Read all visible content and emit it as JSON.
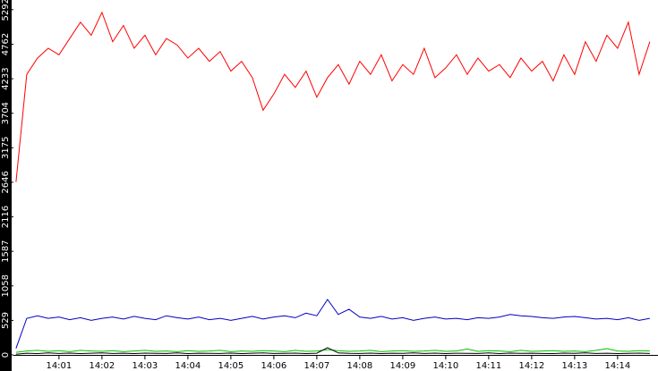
{
  "chart_data": {
    "type": "line",
    "x": [
      0,
      0.25,
      0.5,
      0.75,
      1,
      1.25,
      1.5,
      1.75,
      2,
      2.25,
      2.5,
      2.75,
      3,
      3.25,
      3.5,
      3.75,
      4,
      4.25,
      4.5,
      4.75,
      5,
      5.25,
      5.5,
      5.75,
      6,
      6.25,
      6.5,
      6.75,
      7,
      7.25,
      7.5,
      7.75,
      8,
      8.25,
      8.5,
      8.75,
      9,
      9.25,
      9.5,
      9.75,
      10,
      10.25,
      10.5,
      10.75,
      11,
      11.25,
      11.5,
      11.75,
      12,
      12.25,
      12.5,
      12.75,
      13,
      13.25,
      13.5,
      13.75,
      14,
      14.25,
      14.5,
      14.75
    ],
    "series": [
      {
        "color": "#ff0000",
        "values": [
          2650,
          4300,
          4550,
          4700,
          4600,
          4850,
          5100,
          4900,
          5250,
          4800,
          5050,
          4700,
          4900,
          4600,
          4850,
          4750,
          4550,
          4700,
          4500,
          4650,
          4350,
          4500,
          4250,
          3750,
          4000,
          4300,
          4100,
          4350,
          3950,
          4250,
          4450,
          4150,
          4500,
          4300,
          4600,
          4200,
          4450,
          4300,
          4700,
          4250,
          4400,
          4600,
          4300,
          4550,
          4350,
          4450,
          4250,
          4550,
          4350,
          4500,
          4200,
          4600,
          4300,
          4800,
          4500,
          4900,
          4700,
          5100,
          4300,
          4800
        ]
      },
      {
        "color": "#0000c0",
        "values": [
          100,
          560,
          600,
          560,
          580,
          540,
          570,
          530,
          560,
          580,
          550,
          590,
          560,
          540,
          600,
          570,
          550,
          580,
          540,
          560,
          530,
          560,
          590,
          550,
          580,
          600,
          570,
          640,
          600,
          850,
          620,
          700,
          580,
          560,
          590,
          550,
          570,
          530,
          560,
          580,
          550,
          560,
          540,
          570,
          560,
          580,
          620,
          600,
          590,
          570,
          560,
          580,
          590,
          570,
          550,
          560,
          540,
          570,
          530,
          560
        ]
      },
      {
        "color": "#00c000",
        "values": [
          40,
          60,
          70,
          55,
          65,
          50,
          70,
          60,
          55,
          65,
          50,
          60,
          70,
          55,
          60,
          50,
          65,
          55,
          60,
          70,
          50,
          60,
          55,
          65,
          60,
          50,
          70,
          55,
          60,
          80,
          65,
          55,
          60,
          70,
          50,
          60,
          65,
          55,
          60,
          70,
          55,
          60,
          90,
          55,
          65,
          60,
          50,
          70,
          55,
          60,
          65,
          55,
          60,
          50,
          70,
          95,
          60,
          55,
          65,
          60
        ]
      },
      {
        "color": "#000000",
        "values": [
          10,
          25,
          20,
          30,
          22,
          28,
          20,
          25,
          30,
          22,
          26,
          20,
          28,
          24,
          22,
          30,
          20,
          26,
          24,
          22,
          28,
          20,
          25,
          30,
          22,
          24,
          28,
          20,
          26,
          110,
          30,
          24,
          22,
          28,
          20,
          26,
          24,
          30,
          22,
          28,
          20,
          26,
          24,
          22,
          30,
          20,
          28,
          24,
          26,
          22,
          20,
          28,
          24,
          30,
          22,
          26,
          20,
          24,
          28,
          22
        ]
      }
    ],
    "ylim": [
      0,
      5440
    ],
    "yticks": [
      0,
      529,
      1058,
      1587,
      2116,
      2646,
      3175,
      3704,
      4233,
      4762,
      5292
    ],
    "xlim": [
      -0.06,
      14.94
    ],
    "xticks": [
      {
        "value": 1,
        "label": "14:01"
      },
      {
        "value": 2,
        "label": "14:02"
      },
      {
        "value": 3,
        "label": "14:03"
      },
      {
        "value": 4,
        "label": "14:04"
      },
      {
        "value": 5,
        "label": "14:05"
      },
      {
        "value": 6,
        "label": "14:06"
      },
      {
        "value": 7,
        "label": "14:07"
      },
      {
        "value": 8,
        "label": "14:08"
      },
      {
        "value": 9,
        "label": "14:09"
      },
      {
        "value": 10,
        "label": "14:10"
      },
      {
        "value": 11,
        "label": "14:11"
      },
      {
        "value": 12,
        "label": "14:12"
      },
      {
        "value": 13,
        "label": "14:13"
      },
      {
        "value": 14,
        "label": "14:14"
      }
    ],
    "grid": false
  }
}
